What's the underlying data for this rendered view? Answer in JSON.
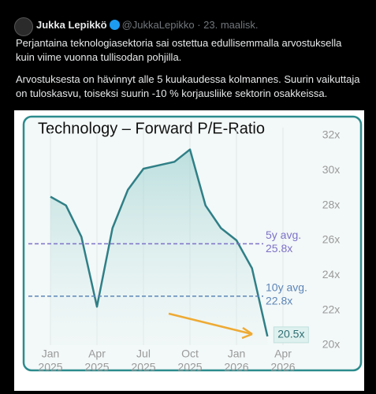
{
  "tweet": {
    "author": "Jukka Lepikkö",
    "handle": "@JukkaLepikko",
    "date": "23. maalisk.",
    "paragraphs": [
      "Perjantaina teknologiasektoria sai ostettua edullisemmalla arvostuksella kuin viime vuonna tullisodan pohjilla.",
      "Arvostuksesta on hävinnyt alle 5 kuukaudessa kolmannes. Suurin vaikuttaja on tuloskasvu, toiseksi suurin -10 % korjausliike sektorin osakkeissa."
    ]
  },
  "chart_data": {
    "type": "area",
    "title": "Technology – Forward P/E-Ratio",
    "x": [
      "2025-01",
      "2025-02",
      "2025-03",
      "2025-04",
      "2025-05",
      "2025-06",
      "2025-07",
      "2025-08",
      "2025-09",
      "2025-10",
      "2025-11",
      "2025-12",
      "2026-01",
      "2026-02",
      "2026-03"
    ],
    "values": [
      28.5,
      28.0,
      26.2,
      22.2,
      26.7,
      28.9,
      30.1,
      30.3,
      30.5,
      31.2,
      28.0,
      26.7,
      26.0,
      24.4,
      20.5
    ],
    "value_labels": [
      null,
      null,
      null,
      null,
      null,
      null,
      null,
      null,
      null,
      null,
      null,
      null,
      null,
      null,
      "20.5x"
    ],
    "color": "#2f7f86",
    "ylim": [
      20,
      32
    ],
    "yticks": [
      {
        "value": 20,
        "label": "20x"
      },
      {
        "value": 22,
        "label": "22x"
      },
      {
        "value": 24,
        "label": "24x"
      },
      {
        "value": 26,
        "label": "26x"
      },
      {
        "value": 28,
        "label": "28x"
      },
      {
        "value": 30,
        "label": "30x"
      },
      {
        "value": 32,
        "label": "32x"
      }
    ],
    "xticks": [
      {
        "value": "2025-01",
        "label": [
          "Jan",
          "2025"
        ]
      },
      {
        "value": "2025-04",
        "label": [
          "Apr",
          "2025"
        ]
      },
      {
        "value": "2025-07",
        "label": [
          "Jul",
          "2025"
        ]
      },
      {
        "value": "2025-10",
        "label": [
          "Oct",
          "2025"
        ]
      },
      {
        "value": "2026-01",
        "label": [
          "Jan",
          "2026"
        ]
      },
      {
        "value": "2026-04",
        "label": [
          "Apr",
          "2026"
        ]
      }
    ],
    "reference_lines": [
      {
        "name": "5y avg.",
        "value": 25.8,
        "label": "25.8x",
        "color": "#7d72c8"
      },
      {
        "name": "10y avg.",
        "value": 22.8,
        "label": "22.8x",
        "color": "#5d86b8"
      }
    ],
    "grid": "x"
  }
}
